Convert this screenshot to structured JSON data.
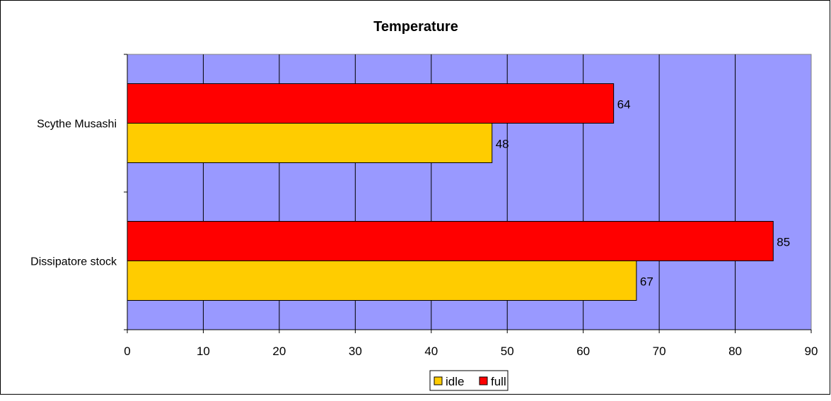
{
  "chart_data": {
    "type": "bar",
    "orientation": "horizontal",
    "title": "Temperature",
    "categories": [
      "Scythe Musashi",
      "Dissipatore stock"
    ],
    "series": [
      {
        "name": "full",
        "color": "#FF0000",
        "values": [
          64,
          85
        ]
      },
      {
        "name": "idle",
        "color": "#FFCC00",
        "values": [
          48,
          67
        ]
      }
    ],
    "xlim": [
      0,
      90
    ],
    "xticks": [
      0,
      10,
      20,
      30,
      40,
      50,
      60,
      70,
      80,
      90
    ],
    "grid": true,
    "plot_background": "#9999FF",
    "legend": {
      "placement": "bottom",
      "order": [
        "idle",
        "full"
      ]
    },
    "data_labels": true
  }
}
